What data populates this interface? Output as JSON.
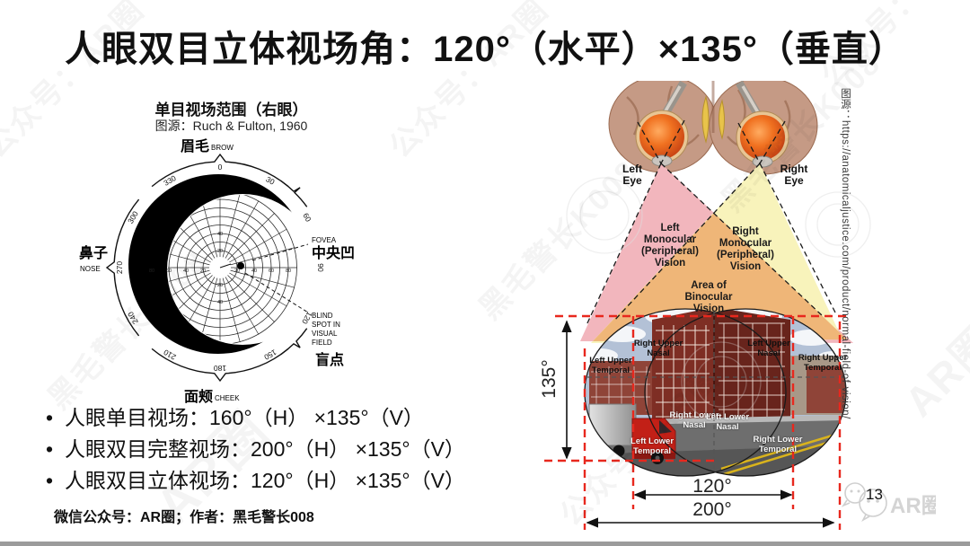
{
  "title": "人眼双目立体视场角：120°（水平）×135°（垂直）",
  "bullets": [
    "人眼单目视场：160°（H） ×135°（V）",
    "人眼双目完整视场：200°（H） ×135°（V）",
    "人眼双目立体视场：120°（H） ×135°（V）"
  ],
  "footer": "微信公众号：AR圈；作者：黑毛警长008",
  "page_number": "13",
  "watermark": {
    "line1": "公众号：AR圈",
    "line2": "黑毛警长K008",
    "logo_text": "AR圈"
  },
  "left_figure": {
    "heading": "单目视场范围（右眼）",
    "source": "图源：Ruch & Fulton, 1960",
    "brow_cn": "眉毛",
    "brow_en": "BROW",
    "nose_cn": "鼻子",
    "nose_en": "NOSE",
    "cheek_cn": "面颊",
    "cheek_en": "CHEEK",
    "fovea_en": "FOVEA",
    "fovea_cn": "中央凹",
    "blind_l1": "BLIND",
    "blind_l2": "SPOT IN",
    "blind_l3": "VISUAL",
    "blind_l4": "FIELD",
    "blind_cn": "盲点",
    "degrees": [
      "0",
      "30",
      "60",
      "90",
      "120",
      "150",
      "180",
      "210",
      "240",
      "270",
      "300",
      "330"
    ],
    "radial_numbers": [
      "20",
      "40",
      "60",
      "80"
    ]
  },
  "right_figure": {
    "left_eye": "Left Eye",
    "right_eye": "Right Eye",
    "left_mono": "Left Monocular (Peripheral) Vision",
    "right_mono": "Right Monocular (Peripheral) Vision",
    "binocular": "Area of Binocular Vision",
    "scene_labels": {
      "right_upper_nasal": "Right Upper Nasal",
      "left_upper_nasal": "Left Upper Nasal",
      "left_upper_temporal": "Left Upper Temporal",
      "right_upper_temporal": "Right Upper Temporal",
      "right_lower_nasal": "Right Lower Nasal",
      "left_lower_nasal": "Left Lower Nasal",
      "left_lower_temporal": "Left Lower Temporal",
      "right_lower_temporal": "Right Lower Temporal"
    },
    "measurements": {
      "vertical": "135°",
      "inner_horizontal": "120°",
      "outer_horizontal": "200°"
    },
    "source_vertical": "图源：https://anatomicaljustice.com/product/normal-field-of-vision/",
    "colors": {
      "left_cone": "#f2b6bd",
      "right_cone": "#f8f3bb",
      "binocular_area": "#efb678",
      "measure_red": "#e8281e"
    }
  }
}
